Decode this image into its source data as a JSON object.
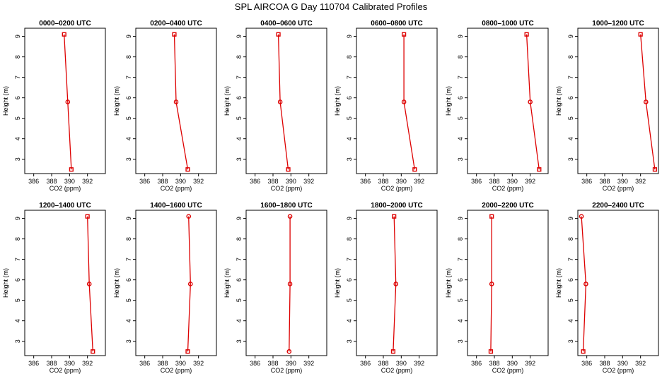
{
  "title": "SPL AIRCOA G  Day 110704  Calibrated Profiles",
  "colors": {
    "series": "#dd0000",
    "axes": "#000000",
    "background": "#ffffff"
  },
  "chart_data": [
    {
      "type": "line",
      "title": "0000–0200 UTC",
      "xlabel": "CO2 (ppm)",
      "ylabel": "Height (m)",
      "xlim": [
        385,
        394
      ],
      "ylim": [
        2.3,
        9.4
      ],
      "x_ticks": [
        386,
        388,
        390,
        392
      ],
      "y_ticks": [
        3,
        4,
        5,
        6,
        7,
        8,
        9
      ],
      "heights": [
        2.5,
        5.8,
        9.1
      ],
      "values": [
        390.2,
        389.8,
        389.4
      ],
      "markers": [
        "square",
        "circle",
        "square"
      ]
    },
    {
      "type": "line",
      "title": "0200–0400 UTC",
      "xlabel": "CO2 (ppm)",
      "ylabel": "Height (m)",
      "xlim": [
        385,
        394
      ],
      "ylim": [
        2.3,
        9.4
      ],
      "x_ticks": [
        386,
        388,
        390,
        392
      ],
      "y_ticks": [
        3,
        4,
        5,
        6,
        7,
        8,
        9
      ],
      "heights": [
        2.5,
        5.8,
        9.1
      ],
      "values": [
        390.8,
        389.5,
        389.3
      ],
      "markers": [
        "square",
        "circle",
        "square"
      ]
    },
    {
      "type": "line",
      "title": "0400–0600 UTC",
      "xlabel": "CO2 (ppm)",
      "ylabel": "Height (m)",
      "xlim": [
        385,
        394
      ],
      "ylim": [
        2.3,
        9.4
      ],
      "x_ticks": [
        386,
        388,
        390,
        392
      ],
      "y_ticks": [
        3,
        4,
        5,
        6,
        7,
        8,
        9
      ],
      "heights": [
        2.5,
        5.8,
        9.1
      ],
      "values": [
        389.7,
        388.8,
        388.6
      ],
      "markers": [
        "square",
        "circle",
        "square"
      ]
    },
    {
      "type": "line",
      "title": "0600–0800 UTC",
      "xlabel": "CO2 (ppm)",
      "ylabel": "Height (m)",
      "xlim": [
        385,
        394
      ],
      "ylim": [
        2.3,
        9.4
      ],
      "x_ticks": [
        386,
        388,
        390,
        392
      ],
      "y_ticks": [
        3,
        4,
        5,
        6,
        7,
        8,
        9
      ],
      "heights": [
        2.5,
        5.8,
        9.1
      ],
      "values": [
        391.5,
        390.3,
        390.3
      ],
      "markers": [
        "square",
        "circle",
        "square"
      ]
    },
    {
      "type": "line",
      "title": "0800–1000 UTC",
      "xlabel": "CO2 (ppm)",
      "ylabel": "Height (m)",
      "xlim": [
        385,
        394
      ],
      "ylim": [
        2.3,
        9.4
      ],
      "x_ticks": [
        386,
        388,
        390,
        392
      ],
      "y_ticks": [
        3,
        4,
        5,
        6,
        7,
        8,
        9
      ],
      "heights": [
        2.5,
        5.8,
        9.1
      ],
      "values": [
        393.0,
        392.0,
        391.6
      ],
      "markers": [
        "square",
        "circle",
        "square"
      ]
    },
    {
      "type": "line",
      "title": "1000–1200 UTC",
      "xlabel": "CO2 (ppm)",
      "ylabel": "Height (m)",
      "xlim": [
        385,
        394
      ],
      "ylim": [
        2.3,
        9.4
      ],
      "x_ticks": [
        386,
        388,
        390,
        392
      ],
      "y_ticks": [
        3,
        4,
        5,
        6,
        7,
        8,
        9
      ],
      "heights": [
        2.5,
        5.8,
        9.1
      ],
      "values": [
        393.6,
        392.6,
        392.0
      ],
      "markers": [
        "square",
        "circle",
        "square"
      ]
    },
    {
      "type": "line",
      "title": "1200–1400 UTC",
      "xlabel": "CO2 (ppm)",
      "ylabel": "Height (m)",
      "xlim": [
        385,
        394
      ],
      "ylim": [
        2.3,
        9.4
      ],
      "x_ticks": [
        386,
        388,
        390,
        392
      ],
      "y_ticks": [
        3,
        4,
        5,
        6,
        7,
        8,
        9
      ],
      "heights": [
        2.5,
        5.8,
        9.1
      ],
      "values": [
        392.6,
        392.2,
        392.0
      ],
      "markers": [
        "square",
        "circle",
        "square"
      ]
    },
    {
      "type": "line",
      "title": "1400–1600 UTC",
      "xlabel": "CO2 (ppm)",
      "ylabel": "Height (m)",
      "xlim": [
        385,
        394
      ],
      "ylim": [
        2.3,
        9.4
      ],
      "x_ticks": [
        386,
        388,
        390,
        392
      ],
      "y_ticks": [
        3,
        4,
        5,
        6,
        7,
        8,
        9
      ],
      "heights": [
        2.5,
        5.8,
        9.1
      ],
      "values": [
        390.8,
        391.1,
        390.9
      ],
      "markers": [
        "square",
        "circle",
        "circle"
      ]
    },
    {
      "type": "line",
      "title": "1600–1800 UTC",
      "xlabel": "CO2 (ppm)",
      "ylabel": "Height (m)",
      "xlim": [
        385,
        394
      ],
      "ylim": [
        2.3,
        9.4
      ],
      "x_ticks": [
        386,
        388,
        390,
        392
      ],
      "y_ticks": [
        3,
        4,
        5,
        6,
        7,
        8,
        9
      ],
      "heights": [
        2.5,
        5.8,
        9.1
      ],
      "values": [
        389.8,
        389.9,
        389.9
      ],
      "markers": [
        "circle",
        "circle",
        "circle"
      ]
    },
    {
      "type": "line",
      "title": "1800–2000 UTC",
      "xlabel": "CO2 (ppm)",
      "ylabel": "Height (m)",
      "xlim": [
        385,
        394
      ],
      "ylim": [
        2.3,
        9.4
      ],
      "x_ticks": [
        386,
        388,
        390,
        392
      ],
      "y_ticks": [
        3,
        4,
        5,
        6,
        7,
        8,
        9
      ],
      "heights": [
        2.5,
        5.8,
        9.1
      ],
      "values": [
        389.1,
        389.4,
        389.2
      ],
      "markers": [
        "square",
        "circle",
        "square"
      ]
    },
    {
      "type": "line",
      "title": "2000–2200 UTC",
      "xlabel": "CO2 (ppm)",
      "ylabel": "Height (m)",
      "xlim": [
        385,
        394
      ],
      "ylim": [
        2.3,
        9.4
      ],
      "x_ticks": [
        386,
        388,
        390,
        392
      ],
      "y_ticks": [
        3,
        4,
        5,
        6,
        7,
        8,
        9
      ],
      "heights": [
        2.5,
        5.8,
        9.1
      ],
      "values": [
        387.6,
        387.7,
        387.7
      ],
      "markers": [
        "square",
        "circle",
        "square"
      ]
    },
    {
      "type": "line",
      "title": "2200–2400 UTC",
      "xlabel": "CO2 (ppm)",
      "ylabel": "Height (m)",
      "xlim": [
        385,
        394
      ],
      "ylim": [
        2.3,
        9.4
      ],
      "x_ticks": [
        386,
        388,
        390,
        392
      ],
      "y_ticks": [
        3,
        4,
        5,
        6,
        7,
        8,
        9
      ],
      "heights": [
        2.5,
        5.8,
        9.1
      ],
      "values": [
        385.6,
        385.9,
        385.4
      ],
      "markers": [
        "square",
        "circle",
        "circle"
      ]
    }
  ]
}
